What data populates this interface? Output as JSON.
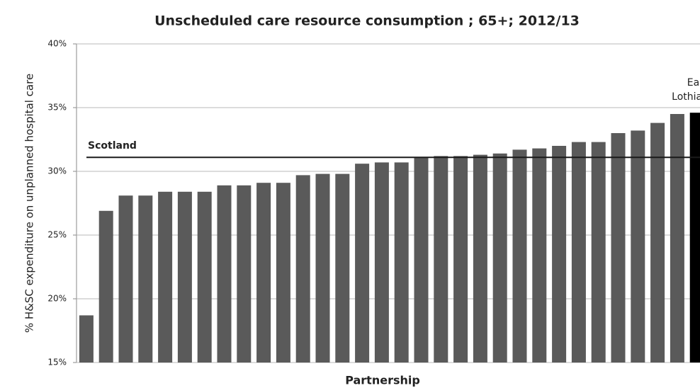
{
  "chart_data": {
    "type": "bar",
    "title": "Unscheduled care resource consumption ; 65+; 2012/13",
    "x_label": "Partnership",
    "y_label": "% H&SC expenditure on unplanned hospital care",
    "categories": [
      null,
      null,
      null,
      null,
      null,
      null,
      null,
      null,
      null,
      null,
      null,
      null,
      null,
      null,
      null,
      null,
      null,
      null,
      null,
      null,
      null,
      null,
      null,
      null,
      null,
      null,
      null,
      null,
      null,
      null,
      null,
      null
    ],
    "values": [
      18.7,
      26.9,
      28.1,
      28.1,
      28.4,
      28.4,
      28.4,
      28.9,
      28.9,
      29.1,
      29.1,
      29.7,
      29.8,
      29.8,
      30.6,
      30.7,
      30.7,
      31.1,
      31.2,
      31.2,
      31.3,
      31.4,
      31.7,
      31.8,
      32.0,
      32.3,
      32.3,
      33.0,
      33.2,
      33.8,
      34.5,
      34.6
    ],
    "colors": [
      "#5a5a5a",
      "#5a5a5a",
      "#5a5a5a",
      "#5a5a5a",
      "#5a5a5a",
      "#5a5a5a",
      "#5a5a5a",
      "#5a5a5a",
      "#5a5a5a",
      "#5a5a5a",
      "#5a5a5a",
      "#5a5a5a",
      "#5a5a5a",
      "#5a5a5a",
      "#5a5a5a",
      "#5a5a5a",
      "#5a5a5a",
      "#5a5a5a",
      "#5a5a5a",
      "#5a5a5a",
      "#5a5a5a",
      "#5a5a5a",
      "#5a5a5a",
      "#5a5a5a",
      "#5a5a5a",
      "#5a5a5a",
      "#5a5a5a",
      "#5a5a5a",
      "#5a5a5a",
      "#5a5a5a",
      "#5a5a5a",
      "#000000"
    ],
    "ylim": [
      15,
      40
    ],
    "yticks": [
      {
        "value": 15,
        "label": "15%"
      },
      {
        "value": 20,
        "label": "20%"
      },
      {
        "value": 25,
        "label": "25%"
      },
      {
        "value": 30,
        "label": "30%"
      },
      {
        "value": 35,
        "label": "35%"
      },
      {
        "value": 40,
        "label": "40%"
      }
    ],
    "grid": true,
    "reference_line": {
      "label": "Scotland",
      "value": 31.1,
      "color": "#1a1a1a"
    },
    "highlight_label": [
      "East",
      "Lothian"
    ]
  }
}
